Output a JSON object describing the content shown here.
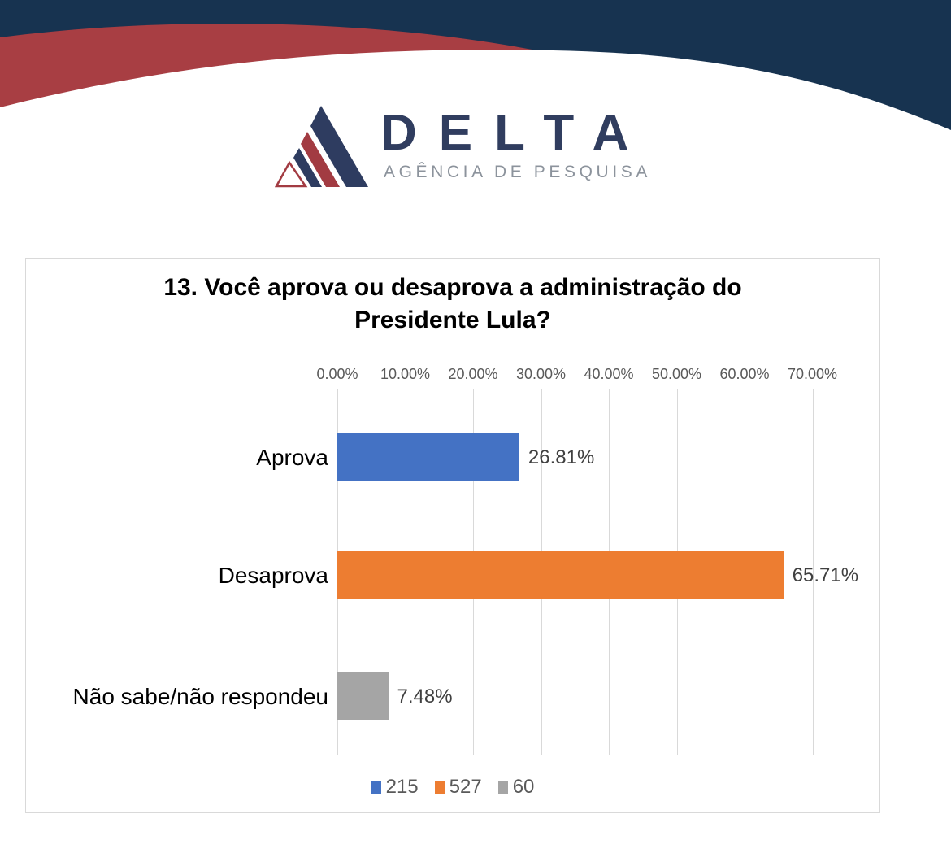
{
  "logo": {
    "brand": "DELTA",
    "tagline": "AGÊNCIA DE PESQUISA"
  },
  "theme": {
    "header_navy": "#173350",
    "header_red": "#A83E43",
    "logo_navy": "#2E3C60",
    "logo_red": "#A23B42",
    "white": "#FFFFFF",
    "grid_color": "#D9D9D9",
    "axis_text": "#595959",
    "value_text": "#404040",
    "category_text": "#000000"
  },
  "chart": {
    "title_lines": [
      "13. Você aprova ou desaprova a administração do",
      "Presidente Lula?"
    ]
  },
  "chart_data": {
    "type": "bar",
    "orientation": "horizontal",
    "title": "13. Você aprova ou desaprova a administração do Presidente Lula?",
    "categories": [
      "Aprova",
      "Desaprova",
      "Não sabe/não respondeu"
    ],
    "values": [
      26.81,
      65.71,
      7.48
    ],
    "value_labels": [
      "26.81%",
      "65.71%",
      "7.48%"
    ],
    "counts": [
      215,
      527,
      60
    ],
    "colors": [
      "#4472C4",
      "#ED7D31",
      "#A5A5A5"
    ],
    "xlabel": "",
    "ylabel": "",
    "x_axis": {
      "min": 0,
      "max": 70,
      "ticks": [
        "0.00%",
        "10.00%",
        "20.00%",
        "30.00%",
        "40.00%",
        "50.00%",
        "60.00%",
        "70.00%"
      ],
      "position": "top"
    },
    "grid": true,
    "legend": {
      "position": "bottom",
      "items": [
        {
          "label": "215",
          "color": "#4472C4"
        },
        {
          "label": "527",
          "color": "#ED7D31"
        },
        {
          "label": "60",
          "color": "#A5A5A5"
        }
      ]
    }
  }
}
